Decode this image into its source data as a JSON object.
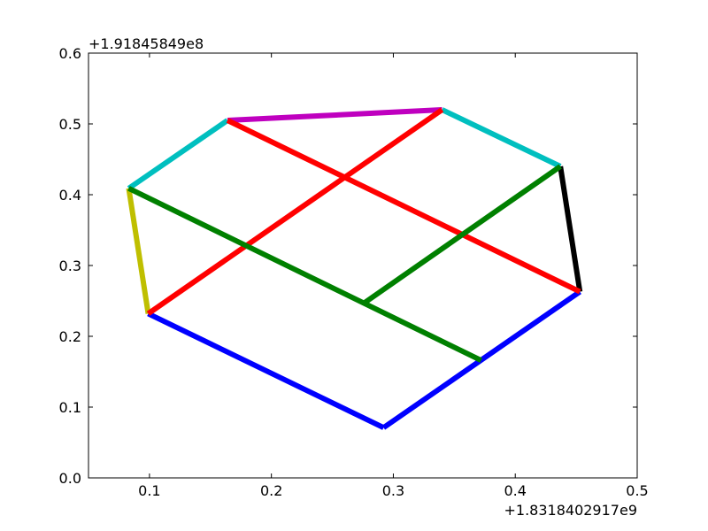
{
  "chart_data": {
    "type": "line",
    "title": "",
    "xlabel": "",
    "ylabel": "",
    "x_offset_label": "+1.8318402917e9",
    "y_offset_label": "+1.91845849e8",
    "xlim": [
      0.05,
      0.5
    ],
    "ylim": [
      0.0,
      0.6
    ],
    "xticks": [
      0.1,
      0.2,
      0.3,
      0.4,
      0.5
    ],
    "xtick_labels": [
      "0.1",
      "0.2",
      "0.3",
      "0.4",
      "0.5"
    ],
    "yticks": [
      0.0,
      0.1,
      0.2,
      0.3,
      0.4,
      0.5,
      0.6
    ],
    "ytick_labels": [
      "0.0",
      "0.1",
      "0.2",
      "0.3",
      "0.4",
      "0.5",
      "0.6"
    ],
    "grid": false,
    "segments": [
      {
        "color": "#0000ff",
        "x": [
          0.099,
          0.292
        ],
        "y": [
          0.232,
          0.071
        ]
      },
      {
        "color": "#0000ff",
        "x": [
          0.292,
          0.453
        ],
        "y": [
          0.071,
          0.263
        ]
      },
      {
        "color": "#bfbf00",
        "x": [
          0.099,
          0.083
        ],
        "y": [
          0.232,
          0.409
        ]
      },
      {
        "color": "#00bfbf",
        "x": [
          0.083,
          0.164
        ],
        "y": [
          0.409,
          0.505
        ]
      },
      {
        "color": "#bf00bf",
        "x": [
          0.164,
          0.34
        ],
        "y": [
          0.505,
          0.52
        ]
      },
      {
        "color": "#00bfbf",
        "x": [
          0.34,
          0.437
        ],
        "y": [
          0.52,
          0.44
        ]
      },
      {
        "color": "#000000",
        "x": [
          0.437,
          0.453
        ],
        "y": [
          0.44,
          0.263
        ]
      },
      {
        "color": "#ff0000",
        "x": [
          0.099,
          0.34
        ],
        "y": [
          0.232,
          0.52
        ]
      },
      {
        "color": "#ff0000",
        "x": [
          0.164,
          0.453
        ],
        "y": [
          0.505,
          0.263
        ]
      },
      {
        "color": "#008000",
        "x": [
          0.083,
          0.372
        ],
        "y": [
          0.409,
          0.166
        ]
      },
      {
        "color": "#008000",
        "x": [
          0.276,
          0.437
        ],
        "y": [
          0.247,
          0.44
        ]
      }
    ]
  }
}
